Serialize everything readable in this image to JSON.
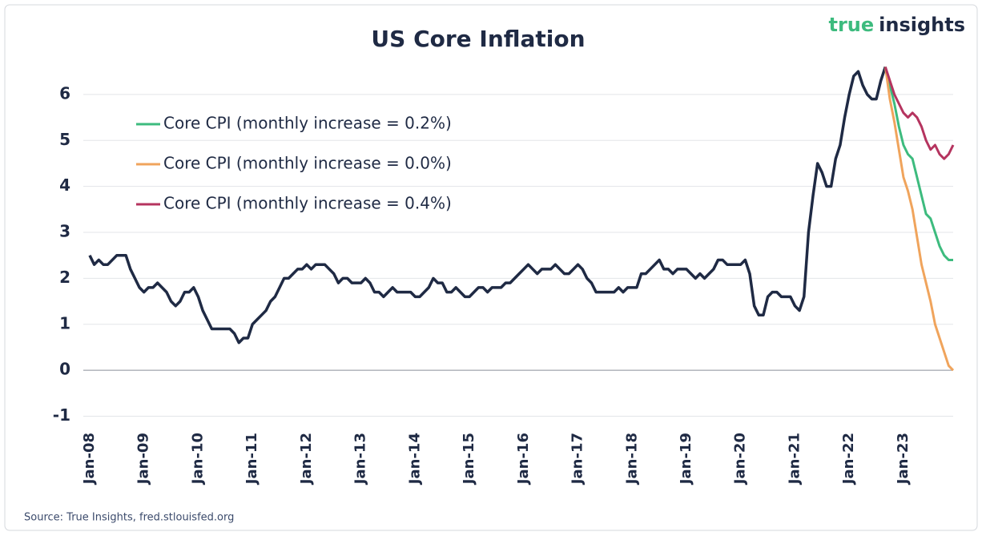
{
  "chart_data": {
    "type": "line",
    "title": "US  Core Inflation",
    "brand": [
      "true",
      "insights"
    ],
    "source": "Source: True Insights, fred.stlouisfed.org",
    "categories": [
      "Jan-08",
      null,
      null,
      null,
      null,
      null,
      null,
      null,
      null,
      null,
      null,
      null,
      "Jan-09",
      null,
      null,
      null,
      null,
      null,
      null,
      null,
      null,
      null,
      null,
      null,
      "Jan-10",
      null,
      null,
      null,
      null,
      null,
      null,
      null,
      null,
      null,
      null,
      null,
      "Jan-11",
      null,
      null,
      null,
      null,
      null,
      null,
      null,
      null,
      null,
      null,
      null,
      "Jan-12",
      null,
      null,
      null,
      null,
      null,
      null,
      null,
      null,
      null,
      null,
      null,
      "Jan-13",
      null,
      null,
      null,
      null,
      null,
      null,
      null,
      null,
      null,
      null,
      null,
      "Jan-14",
      null,
      null,
      null,
      null,
      null,
      null,
      null,
      null,
      null,
      null,
      null,
      "Jan-15",
      null,
      null,
      null,
      null,
      null,
      null,
      null,
      null,
      null,
      null,
      null,
      "Jan-16",
      null,
      null,
      null,
      null,
      null,
      null,
      null,
      null,
      null,
      null,
      null,
      "Jan-17",
      null,
      null,
      null,
      null,
      null,
      null,
      null,
      null,
      null,
      null,
      null,
      "Jan-18",
      null,
      null,
      null,
      null,
      null,
      null,
      null,
      null,
      null,
      null,
      null,
      "Jan-19",
      null,
      null,
      null,
      null,
      null,
      null,
      null,
      null,
      null,
      null,
      null,
      "Jan-20",
      null,
      null,
      null,
      null,
      null,
      null,
      null,
      null,
      null,
      null,
      null,
      "Jan-21",
      null,
      null,
      null,
      null,
      null,
      null,
      null,
      null,
      null,
      null,
      null,
      "Jan-22",
      null,
      null,
      null,
      null,
      null,
      null,
      null,
      null,
      null,
      null,
      null,
      "Jan-23",
      null,
      null,
      null,
      null,
      null,
      null,
      null,
      null,
      null,
      null,
      null
    ],
    "series": [
      {
        "color": "#1f2a44",
        "values": [
          2.5,
          2.3,
          2.4,
          2.3,
          2.3,
          2.4,
          2.5,
          2.5,
          2.5,
          2.2,
          2.0,
          1.8,
          1.7,
          1.8,
          1.8,
          1.9,
          1.8,
          1.7,
          1.5,
          1.4,
          1.5,
          1.7,
          1.7,
          1.8,
          1.6,
          1.3,
          1.1,
          0.9,
          0.9,
          0.9,
          0.9,
          0.9,
          0.8,
          0.6,
          0.7,
          0.7,
          1.0,
          1.1,
          1.2,
          1.3,
          1.5,
          1.6,
          1.8,
          2.0,
          2.0,
          2.1,
          2.2,
          2.2,
          2.3,
          2.2,
          2.3,
          2.3,
          2.3,
          2.2,
          2.1,
          1.9,
          2.0,
          2.0,
          1.9,
          1.9,
          1.9,
          2.0,
          1.9,
          1.7,
          1.7,
          1.6,
          1.7,
          1.8,
          1.7,
          1.7,
          1.7,
          1.7,
          1.6,
          1.6,
          1.7,
          1.8,
          2.0,
          1.9,
          1.9,
          1.7,
          1.7,
          1.8,
          1.7,
          1.6,
          1.6,
          1.7,
          1.8,
          1.8,
          1.7,
          1.8,
          1.8,
          1.8,
          1.9,
          1.9,
          2.0,
          2.1,
          2.2,
          2.3,
          2.2,
          2.1,
          2.2,
          2.2,
          2.2,
          2.3,
          2.2,
          2.1,
          2.1,
          2.2,
          2.3,
          2.2,
          2.0,
          1.9,
          1.7,
          1.7,
          1.7,
          1.7,
          1.7,
          1.8,
          1.7,
          1.8,
          1.8,
          1.8,
          2.1,
          2.1,
          2.2,
          2.3,
          2.4,
          2.2,
          2.2,
          2.1,
          2.2,
          2.2,
          2.2,
          2.1,
          2.0,
          2.1,
          2.0,
          2.1,
          2.2,
          2.4,
          2.4,
          2.3,
          2.3,
          2.3,
          2.3,
          2.4,
          2.1,
          1.4,
          1.2,
          1.2,
          1.6,
          1.7,
          1.7,
          1.6,
          1.6,
          1.6,
          1.4,
          1.3,
          1.6,
          3.0,
          3.8,
          4.5,
          4.3,
          4.0,
          4.0,
          4.6,
          4.9,
          5.5,
          6.0,
          6.4,
          6.5,
          6.2,
          6.0,
          5.9,
          5.9,
          6.3,
          6.6,
          null,
          null,
          null,
          null,
          null,
          null,
          null,
          null,
          null,
          null,
          null,
          null,
          null,
          null,
          null
        ]
      },
      {
        "name": "Core CPI (monthly increase = 0.2%)",
        "color": "#3dbb7e",
        "values": [
          null,
          null,
          null,
          null,
          null,
          null,
          null,
          null,
          null,
          null,
          null,
          null,
          null,
          null,
          null,
          null,
          null,
          null,
          null,
          null,
          null,
          null,
          null,
          null,
          null,
          null,
          null,
          null,
          null,
          null,
          null,
          null,
          null,
          null,
          null,
          null,
          null,
          null,
          null,
          null,
          null,
          null,
          null,
          null,
          null,
          null,
          null,
          null,
          null,
          null,
          null,
          null,
          null,
          null,
          null,
          null,
          null,
          null,
          null,
          null,
          null,
          null,
          null,
          null,
          null,
          null,
          null,
          null,
          null,
          null,
          null,
          null,
          null,
          null,
          null,
          null,
          null,
          null,
          null,
          null,
          null,
          null,
          null,
          null,
          null,
          null,
          null,
          null,
          null,
          null,
          null,
          null,
          null,
          null,
          null,
          null,
          null,
          null,
          null,
          null,
          null,
          null,
          null,
          null,
          null,
          null,
          null,
          null,
          null,
          null,
          null,
          null,
          null,
          null,
          null,
          null,
          null,
          null,
          null,
          null,
          null,
          null,
          null,
          null,
          null,
          null,
          null,
          null,
          null,
          null,
          null,
          null,
          null,
          null,
          null,
          null,
          null,
          null,
          null,
          null,
          null,
          null,
          null,
          null,
          null,
          null,
          null,
          null,
          null,
          null,
          null,
          null,
          null,
          null,
          null,
          null,
          null,
          null,
          null,
          null,
          null,
          null,
          null,
          null,
          null,
          null,
          null,
          null,
          null,
          null,
          null,
          null,
          null,
          null,
          null,
          null,
          6.6,
          6.2,
          5.8,
          5.3,
          4.9,
          4.7,
          4.6,
          4.2,
          3.8,
          3.4,
          3.3,
          3.0,
          2.7,
          2.5,
          2.4,
          2.4
        ]
      },
      {
        "name": "Core CPI (monthly increase = 0.0%)",
        "color": "#f0a45c",
        "values": [
          null,
          null,
          null,
          null,
          null,
          null,
          null,
          null,
          null,
          null,
          null,
          null,
          null,
          null,
          null,
          null,
          null,
          null,
          null,
          null,
          null,
          null,
          null,
          null,
          null,
          null,
          null,
          null,
          null,
          null,
          null,
          null,
          null,
          null,
          null,
          null,
          null,
          null,
          null,
          null,
          null,
          null,
          null,
          null,
          null,
          null,
          null,
          null,
          null,
          null,
          null,
          null,
          null,
          null,
          null,
          null,
          null,
          null,
          null,
          null,
          null,
          null,
          null,
          null,
          null,
          null,
          null,
          null,
          null,
          null,
          null,
          null,
          null,
          null,
          null,
          null,
          null,
          null,
          null,
          null,
          null,
          null,
          null,
          null,
          null,
          null,
          null,
          null,
          null,
          null,
          null,
          null,
          null,
          null,
          null,
          null,
          null,
          null,
          null,
          null,
          null,
          null,
          null,
          null,
          null,
          null,
          null,
          null,
          null,
          null,
          null,
          null,
          null,
          null,
          null,
          null,
          null,
          null,
          null,
          null,
          null,
          null,
          null,
          null,
          null,
          null,
          null,
          null,
          null,
          null,
          null,
          null,
          null,
          null,
          null,
          null,
          null,
          null,
          null,
          null,
          null,
          null,
          null,
          null,
          null,
          null,
          null,
          null,
          null,
          null,
          null,
          null,
          null,
          null,
          null,
          null,
          null,
          null,
          null,
          null,
          null,
          null,
          null,
          null,
          null,
          null,
          null,
          null,
          null,
          null,
          null,
          null,
          null,
          null,
          null,
          null,
          6.6,
          5.9,
          5.4,
          4.8,
          4.2,
          3.9,
          3.5,
          2.9,
          2.3,
          1.9,
          1.5,
          1.0,
          0.7,
          0.4,
          0.1,
          0.0
        ]
      },
      {
        "name": "Core CPI (monthly increase = 0.4%)",
        "color": "#b5345f",
        "values": [
          null,
          null,
          null,
          null,
          null,
          null,
          null,
          null,
          null,
          null,
          null,
          null,
          null,
          null,
          null,
          null,
          null,
          null,
          null,
          null,
          null,
          null,
          null,
          null,
          null,
          null,
          null,
          null,
          null,
          null,
          null,
          null,
          null,
          null,
          null,
          null,
          null,
          null,
          null,
          null,
          null,
          null,
          null,
          null,
          null,
          null,
          null,
          null,
          null,
          null,
          null,
          null,
          null,
          null,
          null,
          null,
          null,
          null,
          null,
          null,
          null,
          null,
          null,
          null,
          null,
          null,
          null,
          null,
          null,
          null,
          null,
          null,
          null,
          null,
          null,
          null,
          null,
          null,
          null,
          null,
          null,
          null,
          null,
          null,
          null,
          null,
          null,
          null,
          null,
          null,
          null,
          null,
          null,
          null,
          null,
          null,
          null,
          null,
          null,
          null,
          null,
          null,
          null,
          null,
          null,
          null,
          null,
          null,
          null,
          null,
          null,
          null,
          null,
          null,
          null,
          null,
          null,
          null,
          null,
          null,
          null,
          null,
          null,
          null,
          null,
          null,
          null,
          null,
          null,
          null,
          null,
          null,
          null,
          null,
          null,
          null,
          null,
          null,
          null,
          null,
          null,
          null,
          null,
          null,
          null,
          null,
          null,
          null,
          null,
          null,
          null,
          null,
          null,
          null,
          null,
          null,
          null,
          null,
          null,
          null,
          null,
          null,
          null,
          null,
          null,
          null,
          null,
          null,
          null,
          null,
          null,
          null,
          null,
          null,
          null,
          null,
          6.6,
          6.3,
          6.0,
          5.8,
          5.6,
          5.5,
          5.6,
          5.5,
          5.3,
          5.0,
          4.8,
          4.9,
          4.7,
          4.6,
          4.7,
          4.9
        ]
      }
    ],
    "ylim": [
      -1.2,
      6.8
    ],
    "yticks": [
      -1,
      0,
      1,
      2,
      3,
      4,
      5,
      6
    ],
    "grid": true
  }
}
